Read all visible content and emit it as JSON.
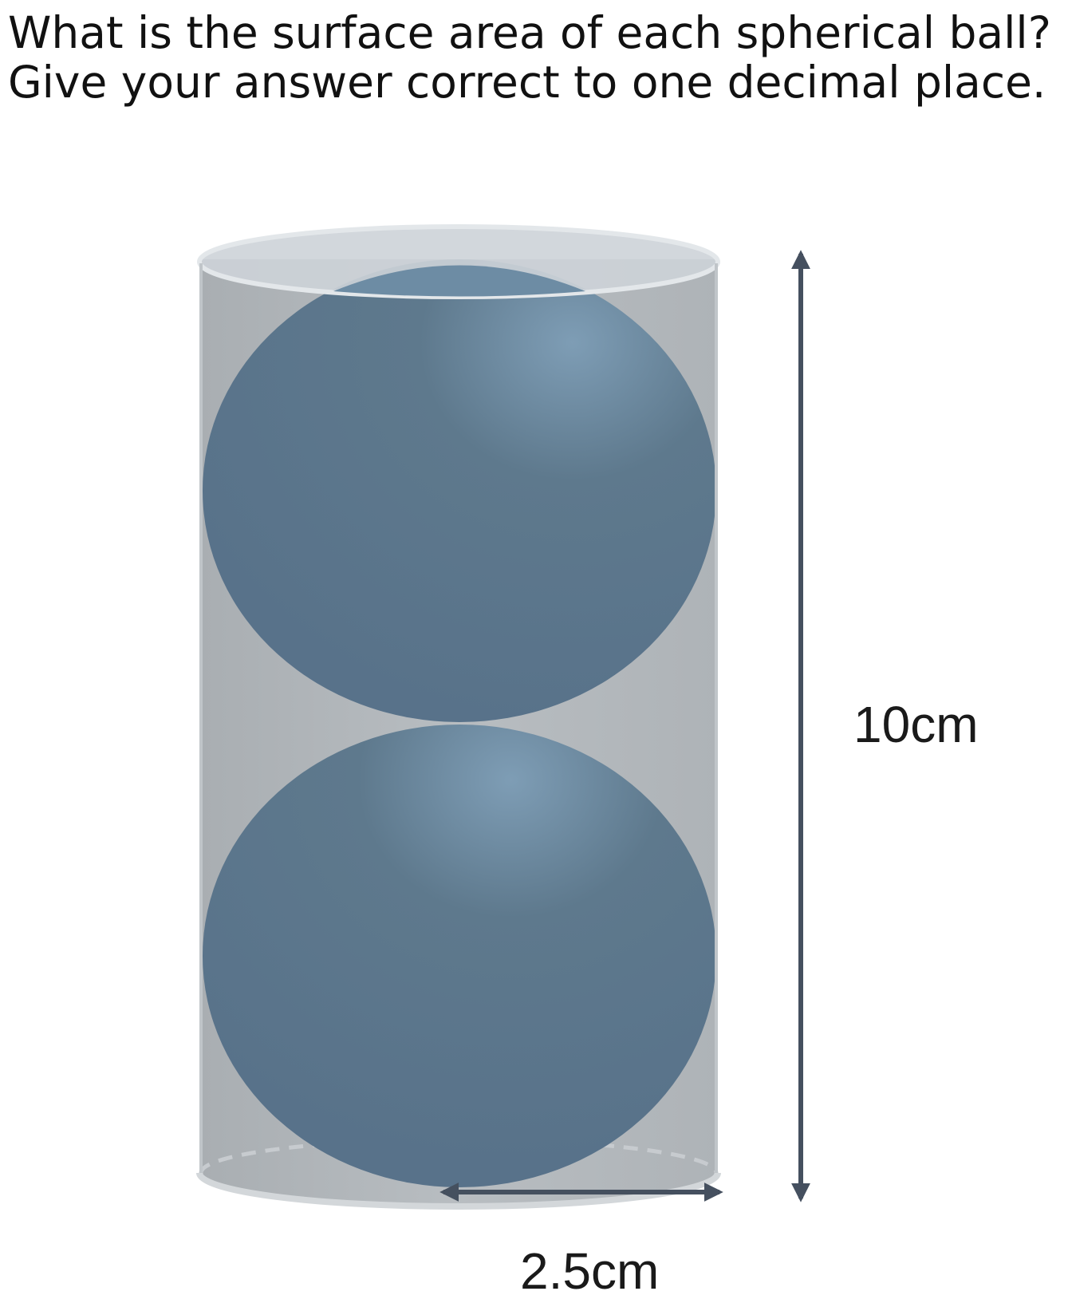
{
  "question": {
    "line1": "What is the surface area of each spherical ball?",
    "line2": "Give your answer correct to one decimal place."
  },
  "diagram": {
    "height_label": "10cm",
    "radius_label": "2.5cm",
    "colors": {
      "sphere": "#5b7589",
      "sphere_highlight": "#7b9ab2",
      "cylinder_body": "#b3b8bc",
      "cylinder_rim": "#d0d6dc",
      "arrow": "#45505f"
    }
  }
}
